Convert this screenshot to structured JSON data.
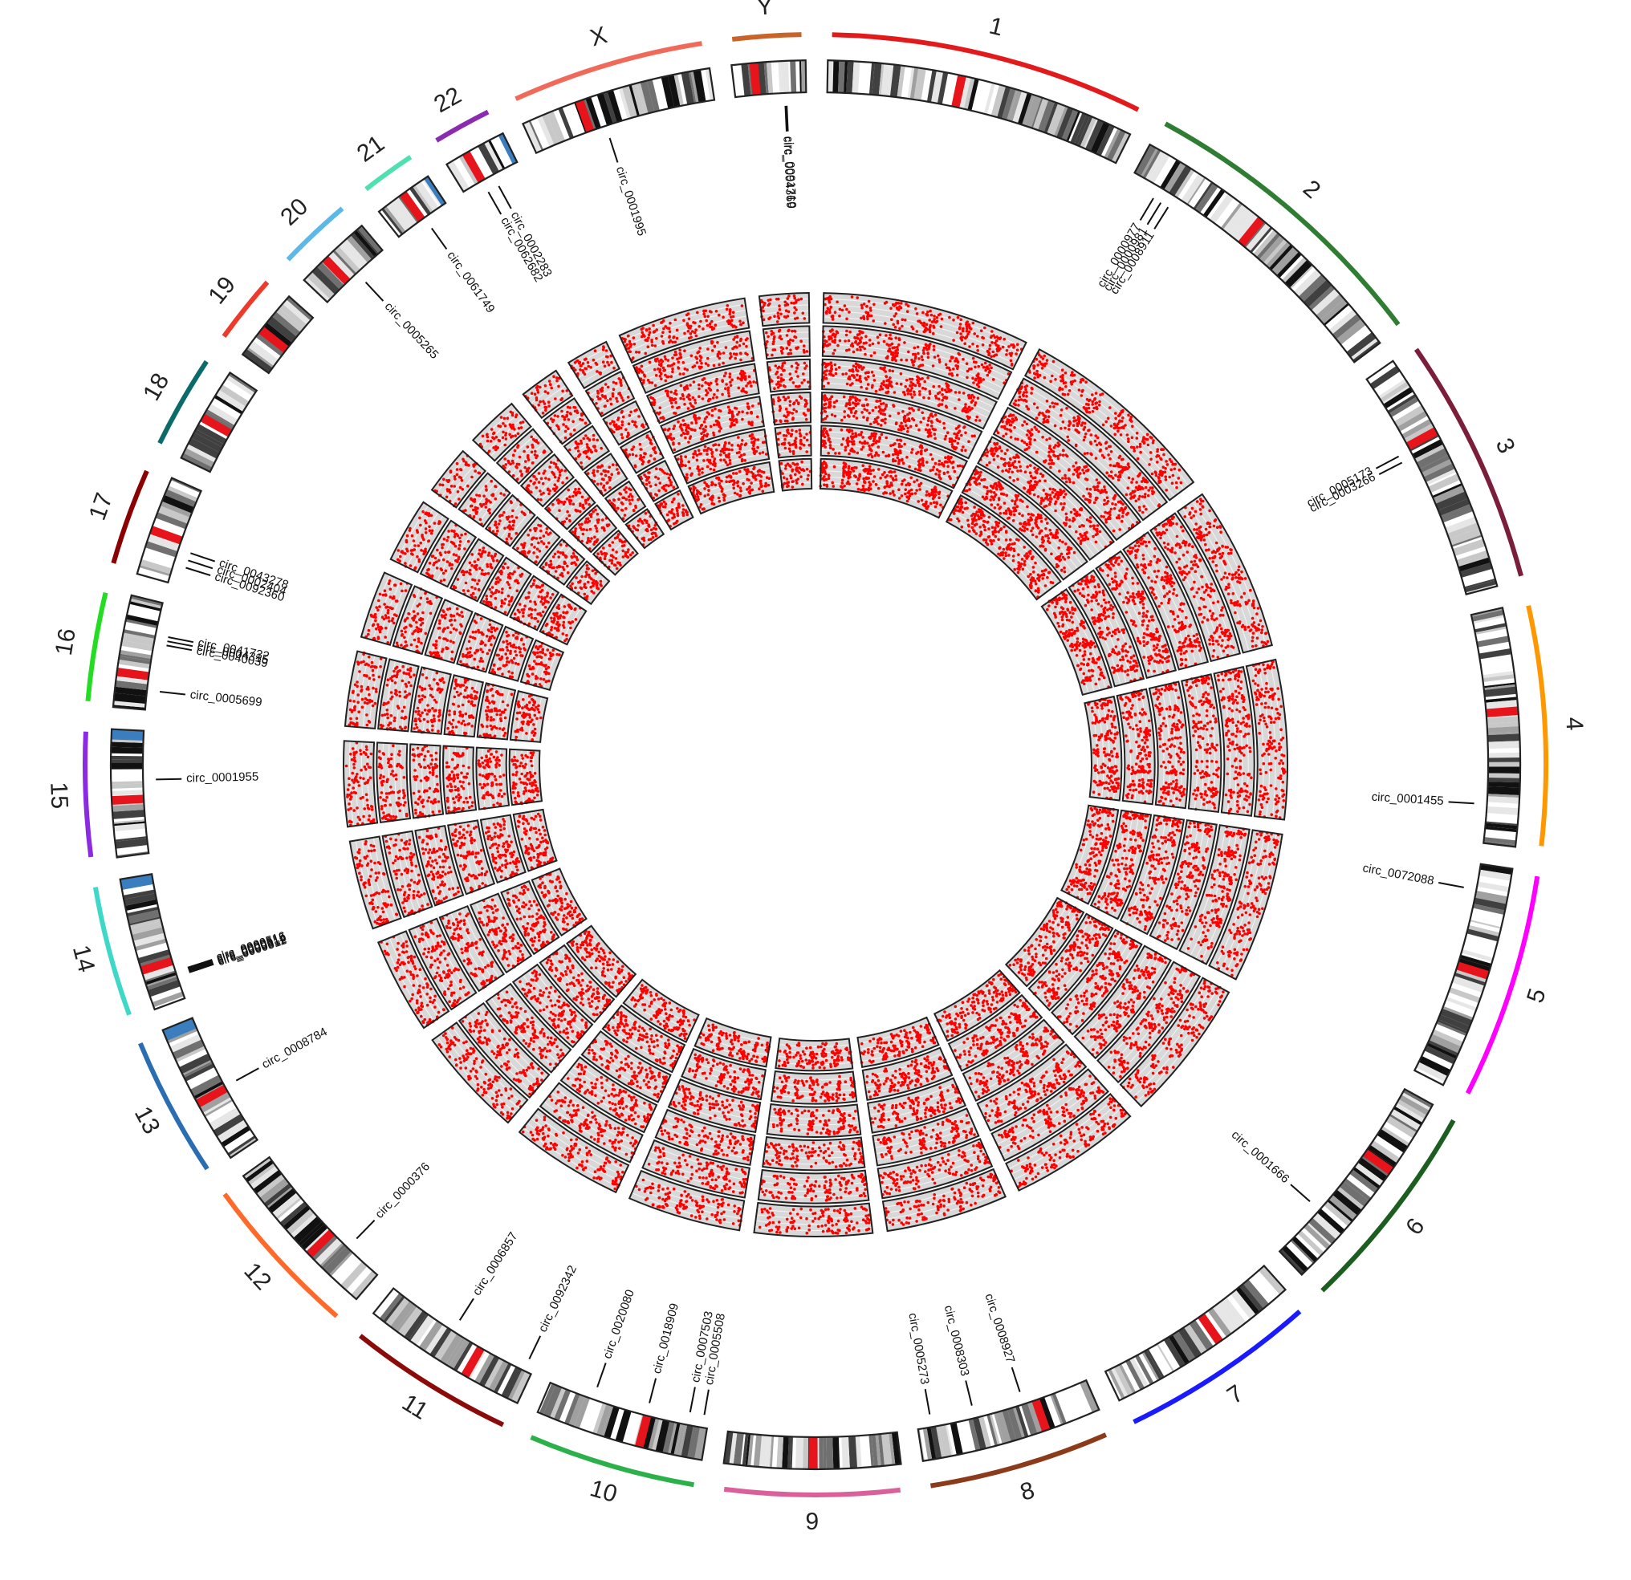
{
  "figure": {
    "chromosomes": [
      {
        "name": "1",
        "color": "#e31a1c",
        "length": 249
      },
      {
        "name": "2",
        "color": "#2e7d32",
        "length": 243
      },
      {
        "name": "3",
        "color": "#7b1e3a",
        "length": 198
      },
      {
        "name": "4",
        "color": "#ff9800",
        "length": 191
      },
      {
        "name": "5",
        "color": "#ff00ff",
        "length": 181
      },
      {
        "name": "6",
        "color": "#1b5e20",
        "length": 171
      },
      {
        "name": "7",
        "color": "#1a1aff",
        "length": 159
      },
      {
        "name": "8",
        "color": "#8b3a1a",
        "length": 146
      },
      {
        "name": "9",
        "color": "#d9609a",
        "length": 141
      },
      {
        "name": "10",
        "color": "#2bb04a",
        "length": 136
      },
      {
        "name": "11",
        "color": "#8b0a0a",
        "length": 135
      },
      {
        "name": "12",
        "color": "#ff6a2a",
        "length": 133
      },
      {
        "name": "13",
        "color": "#2a6db0",
        "length": 115
      },
      {
        "name": "14",
        "color": "#3ed8c8",
        "length": 107
      },
      {
        "name": "15",
        "color": "#8a2be2",
        "length": 102
      },
      {
        "name": "16",
        "color": "#22dd22",
        "length": 90
      },
      {
        "name": "17",
        "color": "#8b0000",
        "length": 81
      },
      {
        "name": "18",
        "color": "#0b6b6b",
        "length": 78
      },
      {
        "name": "19",
        "color": "#ee3a2a",
        "length": 59
      },
      {
        "name": "20",
        "color": "#5bb8e8",
        "length": 63
      },
      {
        "name": "21",
        "color": "#4fe0b0",
        "length": 48
      },
      {
        "name": "22",
        "color": "#8a2bb0",
        "length": 51
      },
      {
        "name": "X",
        "color": "#f06a5a",
        "length": 155
      },
      {
        "name": "Y",
        "color": "#c8642a",
        "length": 59
      }
    ],
    "annotations": [
      {
        "label": "circ_0000977",
        "chr": "2",
        "pos": 0.1
      },
      {
        "label": "circ_0000981",
        "chr": "2",
        "pos": 0.13
      },
      {
        "label": "circ_0008911",
        "chr": "2",
        "pos": 0.16
      },
      {
        "label": "circ_0005173",
        "chr": "3",
        "pos": 0.35
      },
      {
        "label": "circ_0003266",
        "chr": "3",
        "pos": 0.38
      },
      {
        "label": "circ_0001455",
        "chr": "4",
        "pos": 0.83
      },
      {
        "label": "circ_0072088",
        "chr": "5",
        "pos": 0.12
      },
      {
        "label": "circ_0001666",
        "chr": "6",
        "pos": 0.72
      },
      {
        "label": "circ_0008927",
        "chr": "8",
        "pos": 0.38
      },
      {
        "label": "circ_0008303",
        "chr": "8",
        "pos": 0.67
      },
      {
        "label": "circ_0005273",
        "chr": "8",
        "pos": 0.92
      },
      {
        "label": "circ_0005508",
        "chr": "10",
        "pos": 0.03
      },
      {
        "label": "circ_0007503",
        "chr": "10",
        "pos": 0.12
      },
      {
        "label": "circ_0018909",
        "chr": "10",
        "pos": 0.38
      },
      {
        "label": "circ_0020080",
        "chr": "10",
        "pos": 0.72
      },
      {
        "label": "circ_0092342",
        "chr": "11",
        "pos": 0.05
      },
      {
        "label": "circ_0006857",
        "chr": "11",
        "pos": 0.55
      },
      {
        "label": "circ_0000376",
        "chr": "12",
        "pos": 0.25
      },
      {
        "label": "circ_0008784",
        "chr": "13",
        "pos": 0.45
      },
      {
        "label": "circ_0000511",
        "chr": "14",
        "pos": 0.18
      },
      {
        "label": "circ_0000512",
        "chr": "14",
        "pos": 0.19
      },
      {
        "label": "circ_0000514",
        "chr": "14",
        "pos": 0.2
      },
      {
        "label": "circ_0000515",
        "chr": "14",
        "pos": 0.21
      },
      {
        "label": "circ_0000516",
        "chr": "14",
        "pos": 0.22
      },
      {
        "label": "circ_0001955",
        "chr": "15",
        "pos": 0.6
      },
      {
        "label": "circ_0005699",
        "chr": "16",
        "pos": 0.18
      },
      {
        "label": "circ_0040039",
        "chr": "16",
        "pos": 0.62
      },
      {
        "label": "circ_0004315",
        "chr": "16",
        "pos": 0.66
      },
      {
        "label": "circ_0041732",
        "chr": "16",
        "pos": 0.7
      },
      {
        "label": "circ_0092360",
        "chr": "17",
        "pos": 0.2
      },
      {
        "label": "circ_0002404",
        "chr": "17",
        "pos": 0.28
      },
      {
        "label": "circ_0043278",
        "chr": "17",
        "pos": 0.36
      },
      {
        "label": "circ_0005265",
        "chr": "20",
        "pos": 0.55
      },
      {
        "label": "circ_0061749",
        "chr": "21",
        "pos": 0.55
      },
      {
        "label": "circ_0062682",
        "chr": "22",
        "pos": 0.35
      },
      {
        "label": "circ_0002283",
        "chr": "22",
        "pos": 0.55
      },
      {
        "label": "circ_0001995",
        "chr": "X",
        "pos": 0.4
      },
      {
        "label": "circ_0004369",
        "chr": "Y",
        "pos": 0.7
      },
      {
        "label": "circ_0091710",
        "chr": "Y",
        "pos": 0.72
      }
    ],
    "scatter_track_count": 6,
    "point_color": "#ff0000",
    "track_fill": "#d8d8d8"
  }
}
